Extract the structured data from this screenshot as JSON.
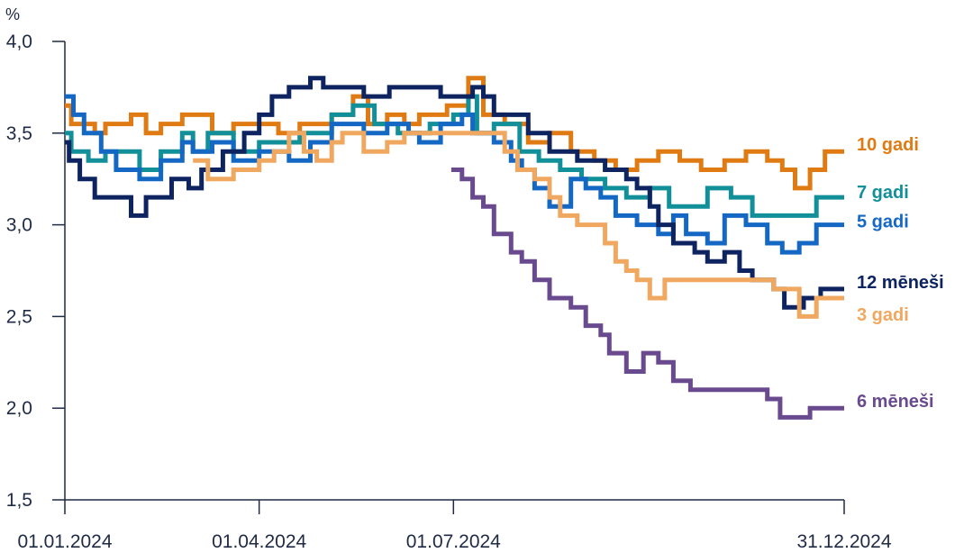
{
  "chart_data": {
    "type": "line",
    "unit_label": "%",
    "ylim": [
      1.5,
      4.0
    ],
    "y_ticks": [
      {
        "value": 4.0,
        "label": "4,0"
      },
      {
        "value": 3.5,
        "label": "3,5"
      },
      {
        "value": 3.0,
        "label": "3,0"
      },
      {
        "value": 2.5,
        "label": "2,5"
      },
      {
        "value": 2.0,
        "label": "2,0"
      },
      {
        "value": 1.5,
        "label": "1,5"
      }
    ],
    "x_range": [
      "2024-01-01",
      "2024-12-31"
    ],
    "x_ticks": [
      {
        "date": "2024-01-01",
        "label": "01.01.2024"
      },
      {
        "date": "2024-04-01",
        "label": "01.04.2024"
      },
      {
        "date": "2024-07-01",
        "label": "01.07.2024"
      },
      {
        "date": "2024-12-31",
        "label": "31.12.2024"
      }
    ],
    "grid": false,
    "legend": "inline labels at right end of each line",
    "series": [
      {
        "name": "10 gadi",
        "color": "#E07B14",
        "points": [
          [
            "2024-01-01",
            3.65
          ],
          [
            "2024-01-04",
            3.55
          ],
          [
            "2024-01-15",
            3.5
          ],
          [
            "2024-01-20",
            3.55
          ],
          [
            "2024-02-01",
            3.6
          ],
          [
            "2024-02-08",
            3.5
          ],
          [
            "2024-02-15",
            3.55
          ],
          [
            "2024-02-25",
            3.6
          ],
          [
            "2024-03-10",
            3.5
          ],
          [
            "2024-03-20",
            3.55
          ],
          [
            "2024-04-10",
            3.5
          ],
          [
            "2024-04-20",
            3.55
          ],
          [
            "2024-05-05",
            3.6
          ],
          [
            "2024-05-15",
            3.7
          ],
          [
            "2024-05-22",
            3.55
          ],
          [
            "2024-05-31",
            3.6
          ],
          [
            "2024-06-08",
            3.55
          ],
          [
            "2024-06-15",
            3.6
          ],
          [
            "2024-06-28",
            3.65
          ],
          [
            "2024-07-08",
            3.8
          ],
          [
            "2024-07-15",
            3.6
          ],
          [
            "2024-07-25",
            3.55
          ],
          [
            "2024-08-05",
            3.45
          ],
          [
            "2024-08-15",
            3.5
          ],
          [
            "2024-08-25",
            3.4
          ],
          [
            "2024-09-05",
            3.35
          ],
          [
            "2024-09-15",
            3.3
          ],
          [
            "2024-09-25",
            3.35
          ],
          [
            "2024-10-05",
            3.4
          ],
          [
            "2024-10-15",
            3.35
          ],
          [
            "2024-10-25",
            3.3
          ],
          [
            "2024-11-05",
            3.35
          ],
          [
            "2024-11-15",
            3.4
          ],
          [
            "2024-11-25",
            3.35
          ],
          [
            "2024-12-02",
            3.3
          ],
          [
            "2024-12-08",
            3.2
          ],
          [
            "2024-12-15",
            3.3
          ],
          [
            "2024-12-22",
            3.4
          ],
          [
            "2024-12-31",
            3.4
          ]
        ]
      },
      {
        "name": "7 gadi",
        "color": "#12909A",
        "points": [
          [
            "2024-01-01",
            3.5
          ],
          [
            "2024-01-04",
            3.4
          ],
          [
            "2024-01-12",
            3.35
          ],
          [
            "2024-01-20",
            3.4
          ],
          [
            "2024-02-05",
            3.3
          ],
          [
            "2024-02-15",
            3.4
          ],
          [
            "2024-02-25",
            3.5
          ],
          [
            "2024-03-01",
            3.4
          ],
          [
            "2024-03-08",
            3.5
          ],
          [
            "2024-03-20",
            3.4
          ],
          [
            "2024-04-01",
            3.45
          ],
          [
            "2024-04-20",
            3.5
          ],
          [
            "2024-05-05",
            3.6
          ],
          [
            "2024-05-15",
            3.65
          ],
          [
            "2024-05-25",
            3.55
          ],
          [
            "2024-06-05",
            3.5
          ],
          [
            "2024-06-20",
            3.55
          ],
          [
            "2024-07-01",
            3.6
          ],
          [
            "2024-07-08",
            3.7
          ],
          [
            "2024-07-12",
            3.5
          ],
          [
            "2024-07-20",
            3.55
          ],
          [
            "2024-08-01",
            3.4
          ],
          [
            "2024-08-10",
            3.35
          ],
          [
            "2024-08-20",
            3.3
          ],
          [
            "2024-08-30",
            3.25
          ],
          [
            "2024-09-10",
            3.2
          ],
          [
            "2024-09-20",
            3.15
          ],
          [
            "2024-10-01",
            3.2
          ],
          [
            "2024-10-10",
            3.1
          ],
          [
            "2024-10-28",
            3.2
          ],
          [
            "2024-11-08",
            3.15
          ],
          [
            "2024-11-18",
            3.05
          ],
          [
            "2024-12-10",
            3.05
          ],
          [
            "2024-12-18",
            3.15
          ],
          [
            "2024-12-31",
            3.15
          ]
        ]
      },
      {
        "name": "5 gadi",
        "color": "#1468C4",
        "points": [
          [
            "2024-01-01",
            3.7
          ],
          [
            "2024-01-05",
            3.6
          ],
          [
            "2024-01-10",
            3.5
          ],
          [
            "2024-01-18",
            3.4
          ],
          [
            "2024-01-25",
            3.3
          ],
          [
            "2024-02-05",
            3.25
          ],
          [
            "2024-02-15",
            3.35
          ],
          [
            "2024-02-25",
            3.45
          ],
          [
            "2024-03-01",
            3.4
          ],
          [
            "2024-03-10",
            3.45
          ],
          [
            "2024-03-20",
            3.35
          ],
          [
            "2024-04-01",
            3.4
          ],
          [
            "2024-04-15",
            3.35
          ],
          [
            "2024-04-25",
            3.45
          ],
          [
            "2024-05-05",
            3.55
          ],
          [
            "2024-05-20",
            3.5
          ],
          [
            "2024-05-31",
            3.55
          ],
          [
            "2024-06-10",
            3.5
          ],
          [
            "2024-06-15",
            3.45
          ],
          [
            "2024-06-25",
            3.55
          ],
          [
            "2024-07-05",
            3.6
          ],
          [
            "2024-07-10",
            3.5
          ],
          [
            "2024-07-20",
            3.45
          ],
          [
            "2024-07-28",
            3.35
          ],
          [
            "2024-08-02",
            3.3
          ],
          [
            "2024-08-08",
            3.2
          ],
          [
            "2024-08-15",
            3.1
          ],
          [
            "2024-08-25",
            3.25
          ],
          [
            "2024-09-01",
            3.2
          ],
          [
            "2024-09-08",
            3.15
          ],
          [
            "2024-09-15",
            3.05
          ],
          [
            "2024-09-25",
            3.0
          ],
          [
            "2024-10-05",
            2.95
          ],
          [
            "2024-10-12",
            3.05
          ],
          [
            "2024-10-18",
            2.95
          ],
          [
            "2024-10-28",
            2.9
          ],
          [
            "2024-11-05",
            3.05
          ],
          [
            "2024-11-15",
            3.0
          ],
          [
            "2024-11-25",
            2.9
          ],
          [
            "2024-12-02",
            2.85
          ],
          [
            "2024-12-10",
            2.9
          ],
          [
            "2024-12-18",
            3.0
          ],
          [
            "2024-12-31",
            3.0
          ]
        ]
      },
      {
        "name": "12 mēneši",
        "color": "#0D2461",
        "points": [
          [
            "2024-01-01",
            3.45
          ],
          [
            "2024-01-03",
            3.35
          ],
          [
            "2024-01-08",
            3.25
          ],
          [
            "2024-01-15",
            3.15
          ],
          [
            "2024-02-01",
            3.05
          ],
          [
            "2024-02-08",
            3.15
          ],
          [
            "2024-02-20",
            3.25
          ],
          [
            "2024-02-28",
            3.2
          ],
          [
            "2024-03-05",
            3.3
          ],
          [
            "2024-03-15",
            3.4
          ],
          [
            "2024-03-25",
            3.5
          ],
          [
            "2024-04-01",
            3.6
          ],
          [
            "2024-04-07",
            3.7
          ],
          [
            "2024-04-15",
            3.75
          ],
          [
            "2024-04-25",
            3.8
          ],
          [
            "2024-05-01",
            3.75
          ],
          [
            "2024-05-12",
            3.75
          ],
          [
            "2024-05-20",
            3.7
          ],
          [
            "2024-06-01",
            3.75
          ],
          [
            "2024-06-20",
            3.75
          ],
          [
            "2024-06-25",
            3.7
          ],
          [
            "2024-07-10",
            3.75
          ],
          [
            "2024-07-15",
            3.7
          ],
          [
            "2024-07-20",
            3.6
          ],
          [
            "2024-07-28",
            3.6
          ],
          [
            "2024-08-05",
            3.5
          ],
          [
            "2024-08-15",
            3.4
          ],
          [
            "2024-08-28",
            3.35
          ],
          [
            "2024-09-10",
            3.3
          ],
          [
            "2024-09-20",
            3.25
          ],
          [
            "2024-09-25",
            3.2
          ],
          [
            "2024-10-01",
            3.1
          ],
          [
            "2024-10-05",
            3.0
          ],
          [
            "2024-10-12",
            2.9
          ],
          [
            "2024-10-22",
            2.85
          ],
          [
            "2024-10-28",
            2.8
          ],
          [
            "2024-11-05",
            2.85
          ],
          [
            "2024-11-12",
            2.75
          ],
          [
            "2024-11-18",
            2.7
          ],
          [
            "2024-11-28",
            2.65
          ],
          [
            "2024-12-03",
            2.55
          ],
          [
            "2024-12-12",
            2.6
          ],
          [
            "2024-12-20",
            2.65
          ],
          [
            "2024-12-31",
            2.65
          ]
        ]
      },
      {
        "name": "3 gadi",
        "color": "#F0A860",
        "points": [
          [
            "2024-03-01",
            3.35
          ],
          [
            "2024-03-08",
            3.25
          ],
          [
            "2024-03-20",
            3.3
          ],
          [
            "2024-04-01",
            3.35
          ],
          [
            "2024-04-08",
            3.4
          ],
          [
            "2024-04-15",
            3.5
          ],
          [
            "2024-04-22",
            3.4
          ],
          [
            "2024-04-28",
            3.35
          ],
          [
            "2024-05-05",
            3.45
          ],
          [
            "2024-05-10",
            3.5
          ],
          [
            "2024-05-20",
            3.4
          ],
          [
            "2024-05-31",
            3.45
          ],
          [
            "2024-06-08",
            3.5
          ],
          [
            "2024-07-25",
            3.4
          ],
          [
            "2024-07-31",
            3.3
          ],
          [
            "2024-08-08",
            3.25
          ],
          [
            "2024-08-15",
            3.15
          ],
          [
            "2024-08-20",
            3.05
          ],
          [
            "2024-08-28",
            3.0
          ],
          [
            "2024-09-10",
            2.9
          ],
          [
            "2024-09-15",
            2.8
          ],
          [
            "2024-09-20",
            2.75
          ],
          [
            "2024-09-25",
            2.7
          ],
          [
            "2024-10-01",
            2.6
          ],
          [
            "2024-10-08",
            2.7
          ],
          [
            "2024-11-18",
            2.7
          ],
          [
            "2024-11-28",
            2.65
          ],
          [
            "2024-12-10",
            2.5
          ],
          [
            "2024-12-18",
            2.6
          ],
          [
            "2024-12-31",
            2.6
          ]
        ]
      },
      {
        "name": "6 mēneši",
        "color": "#6A4A8E",
        "points": [
          [
            "2024-06-30",
            3.3
          ],
          [
            "2024-07-05",
            3.25
          ],
          [
            "2024-07-10",
            3.15
          ],
          [
            "2024-07-15",
            3.1
          ],
          [
            "2024-07-20",
            2.95
          ],
          [
            "2024-07-28",
            2.85
          ],
          [
            "2024-08-02",
            2.8
          ],
          [
            "2024-08-08",
            2.7
          ],
          [
            "2024-08-15",
            2.6
          ],
          [
            "2024-08-25",
            2.55
          ],
          [
            "2024-09-01",
            2.45
          ],
          [
            "2024-09-08",
            2.4
          ],
          [
            "2024-09-12",
            2.3
          ],
          [
            "2024-09-20",
            2.2
          ],
          [
            "2024-09-28",
            2.3
          ],
          [
            "2024-10-05",
            2.25
          ],
          [
            "2024-10-12",
            2.15
          ],
          [
            "2024-10-20",
            2.1
          ],
          [
            "2024-11-05",
            2.1
          ],
          [
            "2024-11-15",
            2.1
          ],
          [
            "2024-11-25",
            2.05
          ],
          [
            "2024-12-01",
            1.95
          ],
          [
            "2024-12-15",
            2.0
          ],
          [
            "2024-12-31",
            2.0
          ]
        ]
      }
    ]
  }
}
